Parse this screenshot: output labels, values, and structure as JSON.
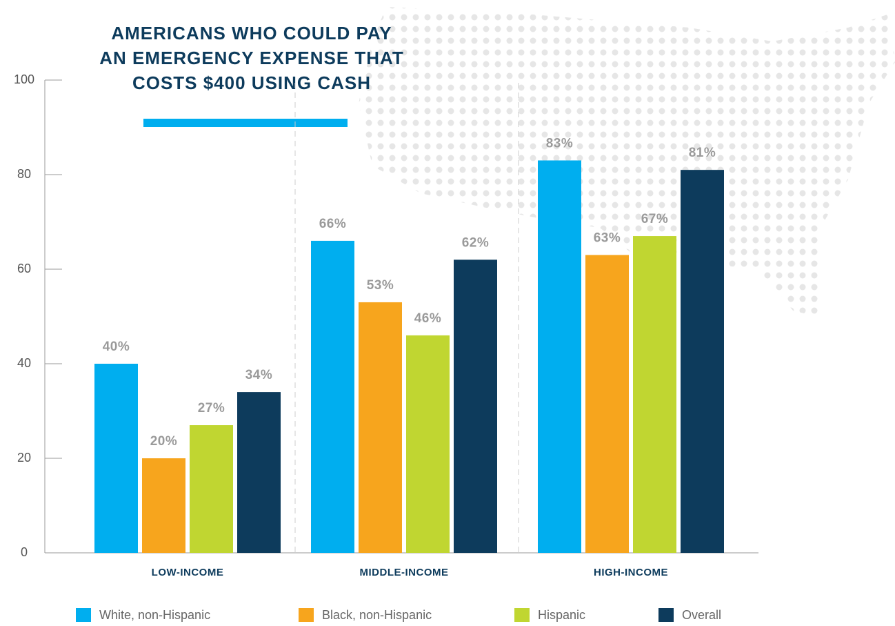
{
  "chart_data": {
    "type": "bar",
    "title": [
      "AMERICANS WHO COULD PAY",
      "AN EMERGENCY EXPENSE THAT",
      "COSTS $400 USING CASH"
    ],
    "categories": [
      "LOW-INCOME",
      "MIDDLE-INCOME",
      "HIGH-INCOME"
    ],
    "series": [
      {
        "name": "White, non-Hispanic",
        "color": "#00aeef",
        "values": [
          40,
          66,
          83
        ],
        "value_labels": [
          "40%",
          "66%",
          "83%"
        ]
      },
      {
        "name": "Black, non-Hispanic",
        "color": "#f7a51d",
        "values": [
          20,
          53,
          63
        ],
        "value_labels": [
          "20%",
          "53%",
          "63%"
        ]
      },
      {
        "name": "Hispanic",
        "color": "#c0d631",
        "values": [
          27,
          46,
          67
        ],
        "value_labels": [
          "27%",
          "46%",
          "67%"
        ]
      },
      {
        "name": "Overall",
        "color": "#0d3b5c",
        "values": [
          34,
          62,
          81
        ],
        "value_labels": [
          "34%",
          "62%",
          "81%"
        ]
      }
    ],
    "ylim": [
      0,
      100
    ],
    "yticks": [
      0,
      20,
      40,
      60,
      80,
      100
    ],
    "legend": "bottom"
  }
}
